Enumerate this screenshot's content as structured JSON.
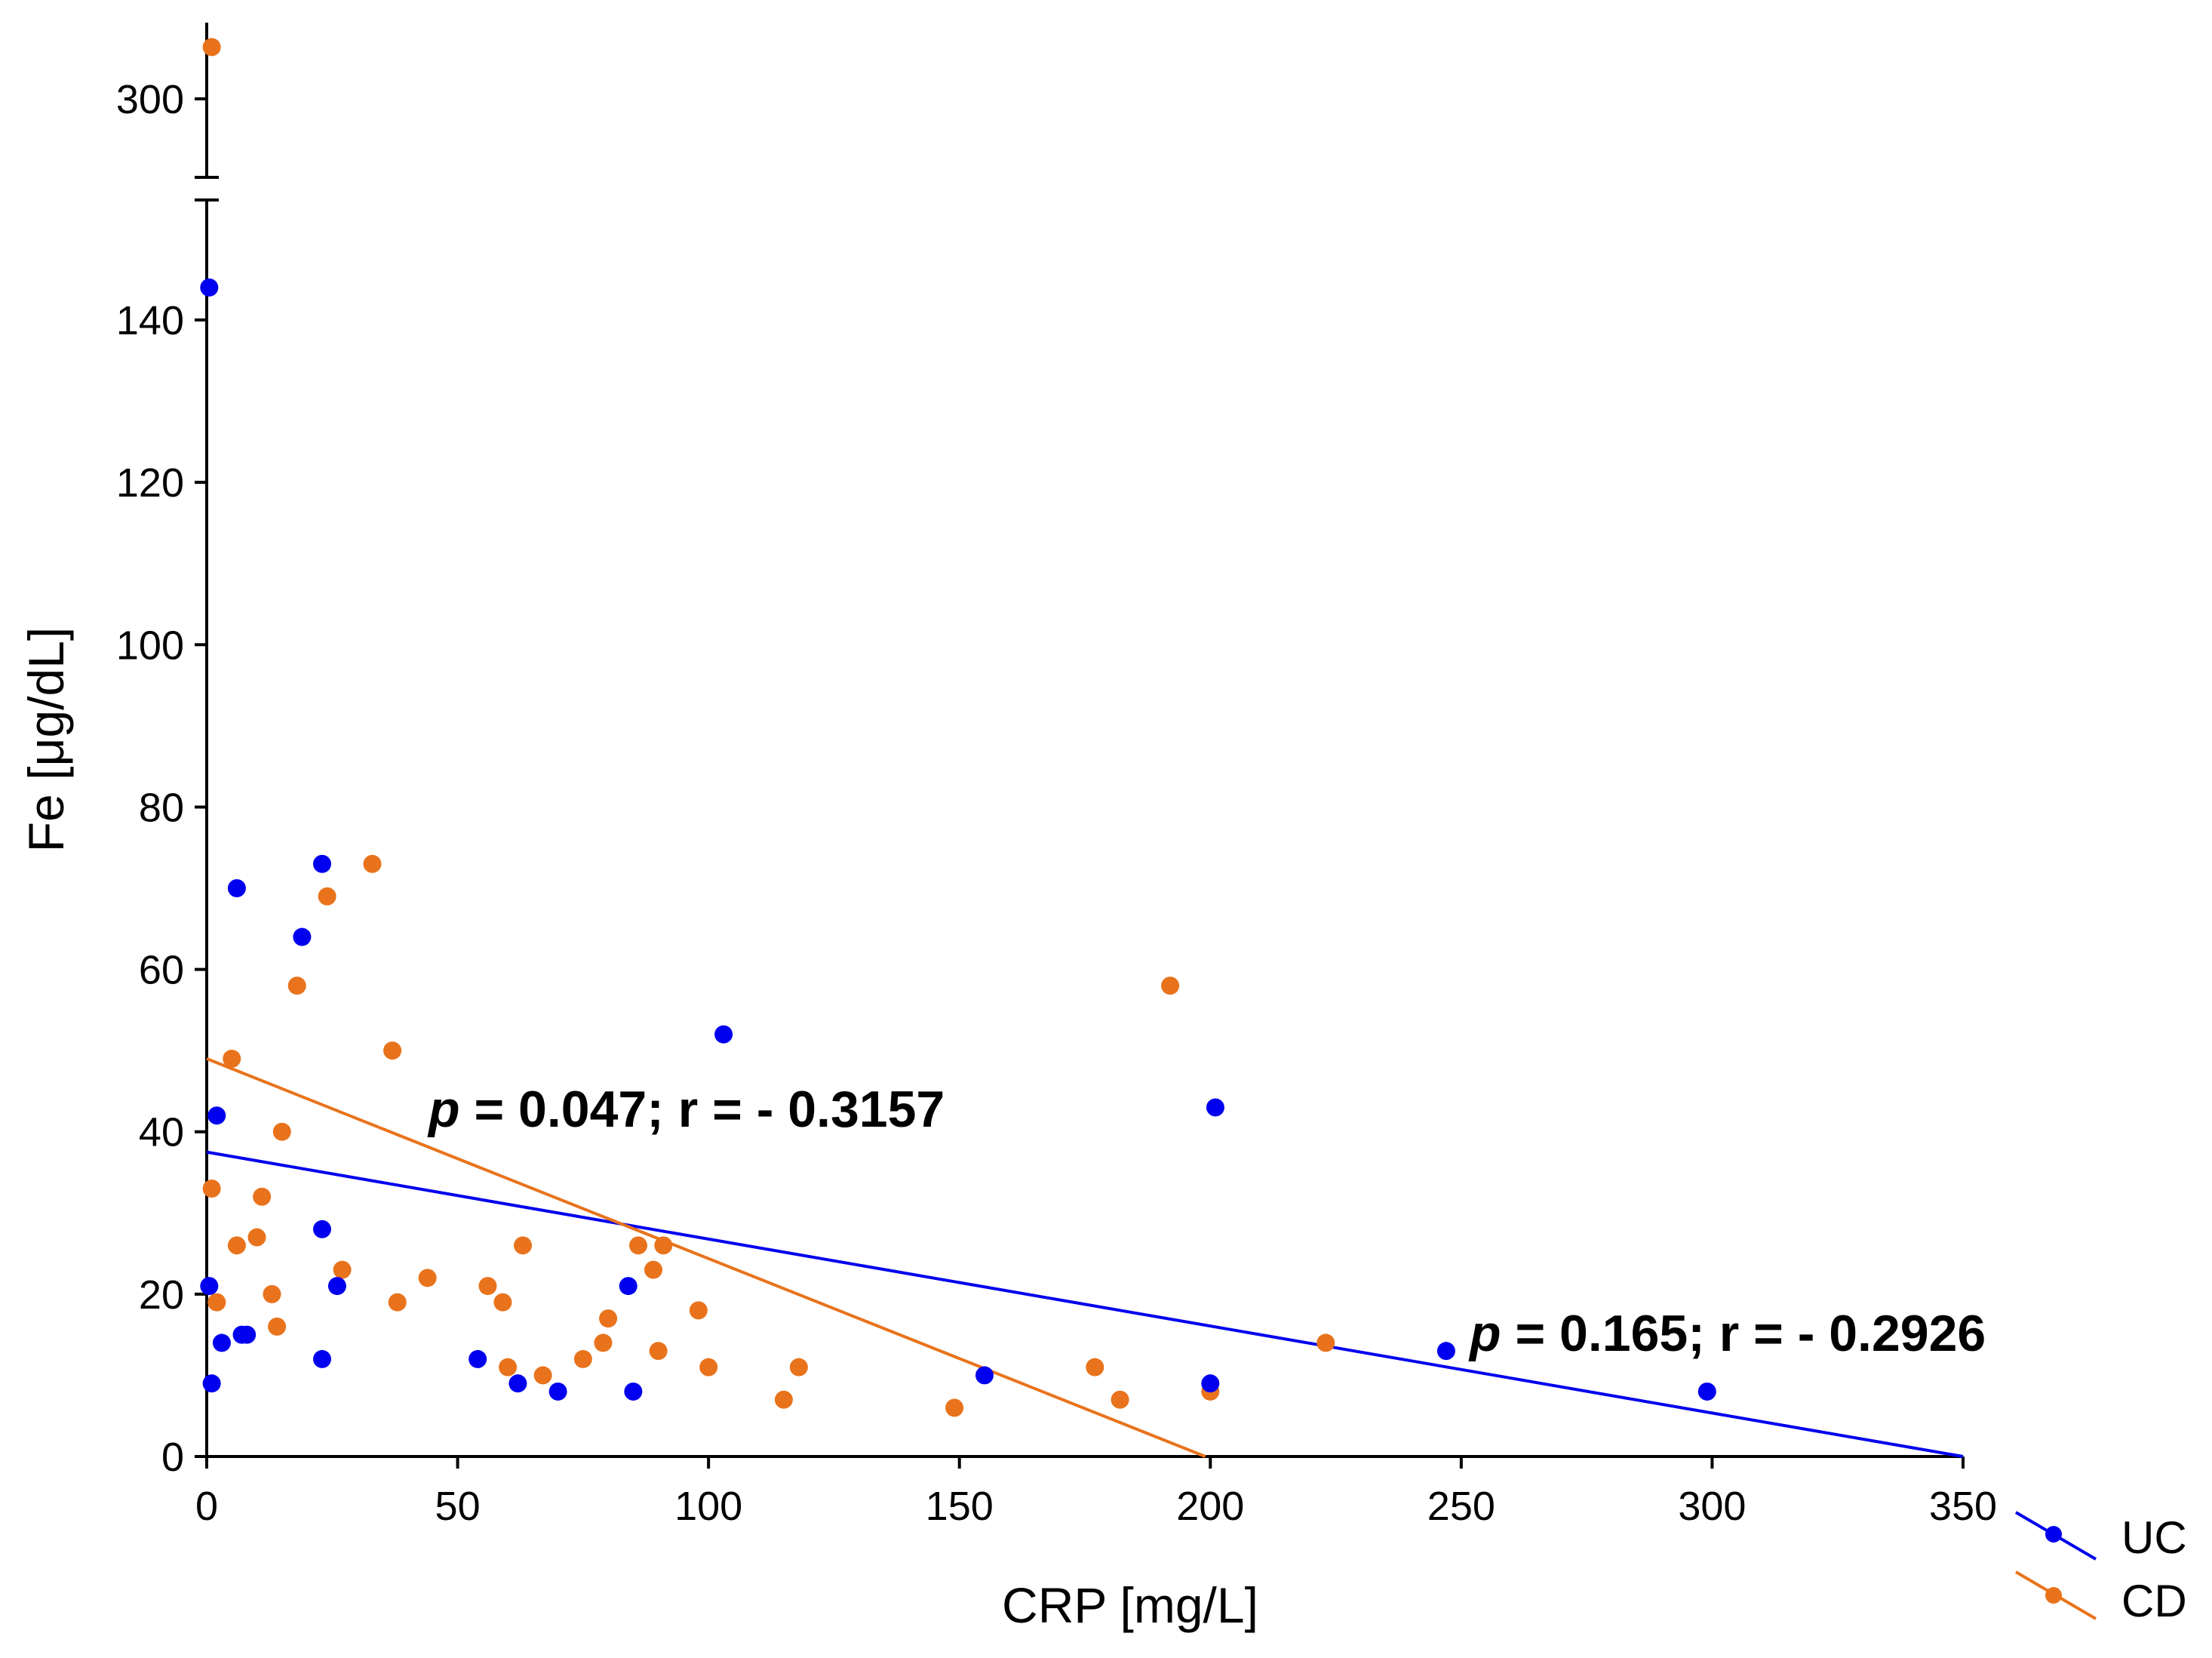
{
  "colors": {
    "uc": "#0000ee",
    "cd": "#e8731c",
    "axis": "#000000"
  },
  "chart_data": {
    "type": "scatter",
    "xlabel": "CRP [mg/L]",
    "ylabel": "Fe [μg/dL]",
    "xlim": [
      0,
      350
    ],
    "ylim": [
      0,
      155
    ],
    "ylim_upper_segment": [
      290,
      310
    ],
    "y_axis_break": true,
    "x_ticks": [
      0,
      50,
      100,
      150,
      200,
      250,
      300,
      350
    ],
    "x_tick_labels": [
      "0",
      "50",
      "100",
      "150",
      "200",
      "250",
      "300",
      "350"
    ],
    "y_ticks": [
      0,
      20,
      40,
      60,
      80,
      100,
      120,
      140,
      300
    ],
    "y_tick_labels": [
      "0",
      "20",
      "40",
      "60",
      "80",
      "100",
      "120",
      "140",
      "300"
    ],
    "legend_position": "bottom-right outside",
    "series": [
      {
        "name": "UC",
        "color": "#0000ee",
        "points": [
          [
            0.5,
            144
          ],
          [
            0.5,
            21
          ],
          [
            1,
            9
          ],
          [
            2,
            42
          ],
          [
            3,
            14
          ],
          [
            6,
            70
          ],
          [
            7,
            15
          ],
          [
            8,
            15
          ],
          [
            19,
            64
          ],
          [
            23,
            73
          ],
          [
            23,
            28
          ],
          [
            23,
            12
          ],
          [
            26,
            21
          ],
          [
            54,
            12
          ],
          [
            62,
            9
          ],
          [
            70,
            8
          ],
          [
            84,
            21
          ],
          [
            85,
            8
          ],
          [
            103,
            52
          ],
          [
            155,
            10
          ],
          [
            200,
            9
          ],
          [
            201,
            43
          ],
          [
            247,
            13
          ],
          [
            299,
            8
          ]
        ],
        "trend": {
          "x": [
            0,
            350
          ],
          "y": [
            37.5,
            0
          ]
        },
        "annotation": {
          "p_label": "p",
          "text": " = 0.165; r = - 0.2926"
        }
      },
      {
        "name": "CD",
        "color": "#e8731c",
        "points": [
          [
            1,
            307
          ],
          [
            1,
            33
          ],
          [
            2,
            19
          ],
          [
            5,
            49
          ],
          [
            6,
            26
          ],
          [
            10,
            27
          ],
          [
            11,
            32
          ],
          [
            13,
            20
          ],
          [
            14,
            16
          ],
          [
            15,
            40
          ],
          [
            18,
            58
          ],
          [
            24,
            69
          ],
          [
            27,
            23
          ],
          [
            33,
            73
          ],
          [
            37,
            50
          ],
          [
            38,
            19
          ],
          [
            44,
            22
          ],
          [
            56,
            21
          ],
          [
            59,
            19
          ],
          [
            60,
            11
          ],
          [
            63,
            26
          ],
          [
            67,
            10
          ],
          [
            75,
            12
          ],
          [
            79,
            14
          ],
          [
            80,
            17
          ],
          [
            86,
            26
          ],
          [
            89,
            23
          ],
          [
            90,
            13
          ],
          [
            91,
            26
          ],
          [
            98,
            18
          ],
          [
            100,
            11
          ],
          [
            115,
            7
          ],
          [
            118,
            11
          ],
          [
            149,
            6
          ],
          [
            177,
            11
          ],
          [
            182,
            7
          ],
          [
            192,
            58
          ],
          [
            200,
            8
          ],
          [
            223,
            14
          ]
        ],
        "trend": {
          "x": [
            0,
            199
          ],
          "y": [
            49,
            0
          ]
        },
        "annotation": {
          "p_label": "p",
          "text": " = 0.047; r = - 0.3157"
        }
      }
    ]
  }
}
